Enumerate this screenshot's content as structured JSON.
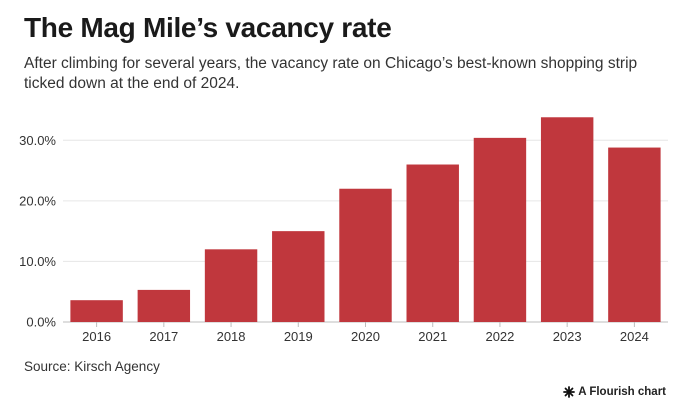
{
  "header": {
    "title": "The Mag Mile’s vacancy rate",
    "subtitle": "After climbing for several years, the vacancy rate on Chicago’s best-known shopping strip ticked down at the end of 2024."
  },
  "chart_data": {
    "type": "bar",
    "categories": [
      "2016",
      "2017",
      "2018",
      "2019",
      "2020",
      "2021",
      "2022",
      "2023",
      "2024"
    ],
    "values": [
      3.6,
      5.3,
      12.0,
      15.0,
      22.0,
      26.0,
      30.4,
      33.8,
      28.8
    ],
    "ylim": [
      0,
      35
    ],
    "yticks": [
      0,
      10,
      20,
      30
    ],
    "ytick_labels": [
      "0.0%",
      "10.0%",
      "20.0%",
      "30.0%"
    ],
    "bar_color": "#c0373d",
    "grid": true
  },
  "footer": {
    "source": "Source: Kirsch Agency",
    "credit": "A Flourish chart"
  }
}
